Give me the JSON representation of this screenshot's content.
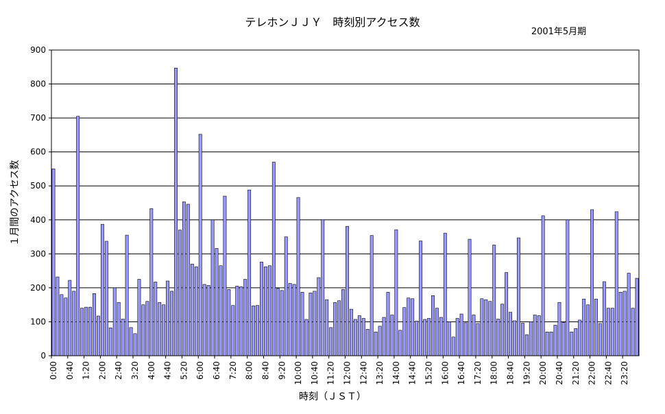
{
  "chart_data": {
    "type": "bar",
    "title": "テレホンＪＪＹ　時刻別アクセス数",
    "subtitle": "2001年5月期",
    "xlabel": "時刻（ＪＳＴ）",
    "ylabel": "１月間のアクセス数",
    "ylim": [
      0,
      900
    ],
    "yticks": [
      "0",
      "100",
      "200",
      "300",
      "400",
      "500",
      "600",
      "700",
      "800",
      "900"
    ],
    "xtick_labels": [
      "0:00",
      "0:40",
      "1:20",
      "2:00",
      "2:40",
      "3:20",
      "4:00",
      "4:40",
      "5:20",
      "6:00",
      "6:40",
      "7:20",
      "8:00",
      "8:40",
      "9:20",
      "10:00",
      "10:40",
      "11:20",
      "12:00",
      "12:40",
      "13:20",
      "14:00",
      "14:40",
      "15:20",
      "16:00",
      "16:40",
      "17:20",
      "18:00",
      "18:40",
      "19:20",
      "20:00",
      "20:40",
      "21:20",
      "22:00",
      "22:40",
      "23:20"
    ],
    "grid": true,
    "bar_color": "#9999FF",
    "interval_minutes": 10,
    "values": [
      550,
      232,
      180,
      170,
      222,
      190,
      705,
      140,
      143,
      143,
      183,
      117,
      387,
      337,
      82,
      200,
      157,
      108,
      355,
      83,
      65,
      225,
      150,
      160,
      433,
      217,
      157,
      150,
      220,
      190,
      847,
      370,
      453,
      446,
      270,
      262,
      652,
      210,
      207,
      400,
      316,
      265,
      470,
      195,
      148,
      205,
      203,
      225,
      488,
      147,
      148,
      276,
      262,
      265,
      570,
      198,
      192,
      350,
      213,
      210,
      466,
      187,
      107,
      185,
      190,
      230,
      401,
      165,
      83,
      157,
      162,
      195,
      381,
      137,
      107,
      118,
      110,
      78,
      354,
      70,
      87,
      113,
      187,
      120,
      371,
      75,
      142,
      170,
      168,
      102,
      338,
      107,
      110,
      177,
      140,
      113,
      361,
      100,
      55,
      110,
      123,
      97,
      343,
      120,
      95,
      168,
      165,
      160,
      326,
      108,
      152,
      245,
      128,
      103,
      347,
      96,
      62,
      100,
      120,
      118,
      412,
      70,
      70,
      90,
      157,
      98,
      400,
      70,
      80,
      105,
      167,
      150,
      430,
      167,
      95,
      218,
      140,
      140,
      424,
      187,
      190,
      243,
      140,
      228
    ]
  }
}
